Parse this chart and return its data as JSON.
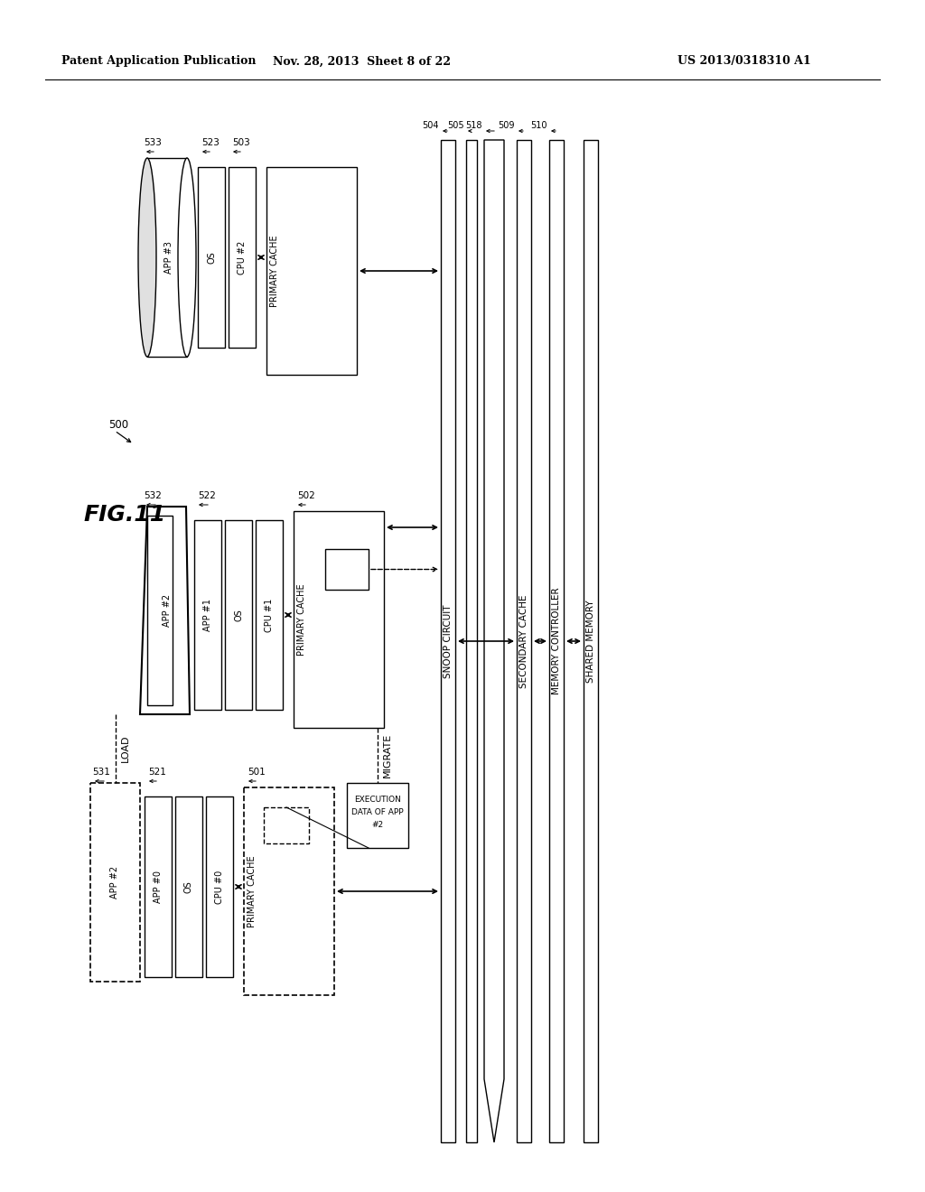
{
  "header_left": "Patent Application Publication",
  "header_mid": "Nov. 28, 2013  Sheet 8 of 22",
  "header_right": "US 2013/0318310 A1",
  "bg": "#ffffff"
}
